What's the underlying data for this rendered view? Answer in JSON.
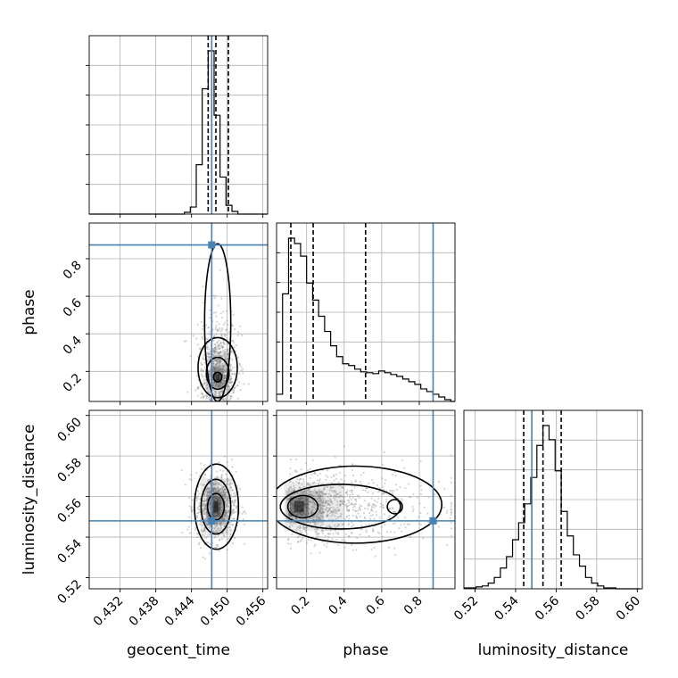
{
  "chart_data": {
    "type": "corner",
    "parameters": [
      "geocent_time",
      "phase",
      "luminosity_distance"
    ],
    "ranges": {
      "geocent_time": [
        0.4268,
        0.4568
      ],
      "phase": [
        0.04,
        0.99
      ],
      "luminosity_distance": [
        0.5145,
        0.6025
      ]
    },
    "ticks": {
      "geocent_time": [
        "0.432",
        "0.438",
        "0.444",
        "0.450",
        "0.456"
      ],
      "phase": [
        "0.2",
        "0.4",
        "0.6",
        "0.8"
      ],
      "luminosity_distance": [
        "0.52",
        "0.54",
        "0.56",
        "0.58",
        "0.60"
      ]
    },
    "truths": {
      "geocent_time": 0.4474,
      "phase": 0.8735,
      "luminosity_distance": 0.548
    },
    "quantiles": {
      "geocent_time": [
        0.4468,
        0.4481,
        0.4502
      ],
      "phase": [
        0.116,
        0.235,
        0.514
      ],
      "luminosity_distance": [
        0.544,
        0.5535,
        0.5625
      ]
    },
    "histograms": {
      "geocent_time": {
        "edges": [
          0.4268,
          0.4278,
          0.4288,
          0.4298,
          0.4308,
          0.4318,
          0.4328,
          0.4338,
          0.4348,
          0.4358,
          0.4368,
          0.4378,
          0.4388,
          0.4398,
          0.4408,
          0.4418,
          0.4428,
          0.4438,
          0.4448,
          0.4458,
          0.4468,
          0.4478,
          0.4488,
          0.4498,
          0.4508,
          0.4518,
          0.4528,
          0.4538,
          0.4548,
          0.4558,
          0.4568
        ],
        "counts": [
          0,
          0,
          0,
          0,
          0,
          0,
          0,
          0,
          0,
          0,
          0,
          0,
          0,
          0,
          0,
          0,
          2,
          8,
          56,
          142,
          185,
          112,
          42,
          10,
          3,
          0,
          0,
          0,
          0,
          0
        ]
      },
      "phase": {
        "edges": [
          0.04,
          0.072,
          0.104,
          0.136,
          0.168,
          0.2,
          0.232,
          0.264,
          0.296,
          0.328,
          0.36,
          0.392,
          0.424,
          0.456,
          0.488,
          0.52,
          0.552,
          0.584,
          0.616,
          0.648,
          0.68,
          0.712,
          0.744,
          0.776,
          0.808,
          0.84,
          0.872,
          0.904,
          0.936,
          0.968,
          0.99
        ],
        "counts": [
          8,
          120,
          182,
          176,
          162,
          132,
          113,
          95,
          78,
          62,
          50,
          42,
          40,
          36,
          33,
          32,
          31,
          34,
          32,
          30,
          28,
          25,
          22,
          19,
          14,
          11,
          8,
          5,
          2,
          0
        ]
      },
      "luminosity_distance": {
        "edges": [
          0.5145,
          0.5175,
          0.5205,
          0.5235,
          0.5265,
          0.5295,
          0.5325,
          0.5355,
          0.5385,
          0.5415,
          0.5445,
          0.5475,
          0.5505,
          0.5535,
          0.5565,
          0.5595,
          0.5625,
          0.5655,
          0.5685,
          0.5715,
          0.5745,
          0.5775,
          0.5805,
          0.5835,
          0.5865,
          0.5895,
          0.5925,
          0.5955,
          0.5985,
          0.6015
        ],
        "counts": [
          1,
          1,
          2,
          3,
          6,
          12,
          22,
          34,
          52,
          70,
          90,
          118,
          152,
          173,
          158,
          125,
          82,
          56,
          36,
          24,
          12,
          6,
          3,
          1,
          1,
          0,
          0,
          0,
          0
        ]
      }
    },
    "joint_2d": [
      {
        "x": "geocent_time",
        "y": "phase",
        "peak": [
          0.4484,
          0.168
        ]
      },
      {
        "x": "geocent_time",
        "y": "luminosity_distance",
        "peak": [
          0.4481,
          0.555
        ]
      },
      {
        "x": "phase",
        "y": "luminosity_distance",
        "peak": [
          0.16,
          0.555
        ]
      }
    ],
    "grid": true,
    "colors": {
      "truth": "#4682b4",
      "hist": "#000000",
      "quantile": "#000000",
      "grid": "#b0b0b0",
      "samples": "#888888"
    }
  }
}
